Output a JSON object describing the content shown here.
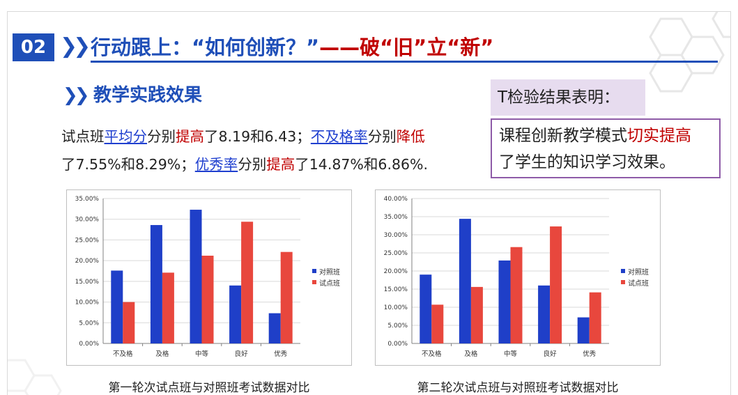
{
  "header": {
    "number": "02",
    "title_prefix": "行动跟上：“如何创新？”",
    "title_dash": "——",
    "title_red": "破“旧”立“新”"
  },
  "section": {
    "title": "教学实践效果"
  },
  "paragraph": {
    "t1": "试点班",
    "link1": "平均分",
    "t2": "分别",
    "hl1": "提高",
    "t3": "了8.19和6.43；",
    "link2": "不及格率",
    "t4": "分别",
    "hl2": "降低",
    "t5": "了7.55%和8.29%；",
    "link3": "优秀率",
    "t6": "分别",
    "hl3": "提高",
    "t7": "了14.87%和6.86%."
  },
  "ttest": {
    "label": "T检验结果表明：",
    "line1_a": "课程创新教学模式",
    "line1_b": "切实提高",
    "line2": "了学生的知识学习效果。"
  },
  "colors": {
    "control": "#1f3fc8",
    "pilot": "#e8473d",
    "brand": "#1f4fb8",
    "red": "#c00000"
  },
  "chart_data": [
    {
      "type": "bar",
      "title": "第一轮次试点班与对照班考试数据对比",
      "categories": [
        "不及格",
        "及格",
        "中等",
        "良好",
        "优秀"
      ],
      "series": [
        {
          "name": "对照班",
          "values": [
            17.6,
            28.6,
            32.3,
            14.0,
            7.3
          ]
        },
        {
          "name": "试点班",
          "values": [
            10.0,
            17.1,
            21.2,
            29.4,
            22.1
          ]
        }
      ],
      "ylim": [
        0,
        35
      ],
      "yticks": [
        "0.00%",
        "5.00%",
        "10.00%",
        "15.00%",
        "20.00%",
        "25.00%",
        "30.00%",
        "35.00%"
      ],
      "ytick_values": [
        0,
        5,
        10,
        15,
        20,
        25,
        30,
        35
      ],
      "grid": true,
      "legend": "right"
    },
    {
      "type": "bar",
      "title": "第二轮次试点班与对照班考试数据对比",
      "categories": [
        "不及格",
        "及格",
        "中等",
        "良好",
        "优秀"
      ],
      "series": [
        {
          "name": "对照班",
          "values": [
            19.0,
            34.4,
            22.9,
            16.0,
            7.2
          ]
        },
        {
          "name": "试点班",
          "values": [
            10.7,
            15.6,
            26.6,
            32.3,
            14.1
          ]
        }
      ],
      "ylim": [
        0,
        40
      ],
      "yticks": [
        "0.00%",
        "5.00%",
        "10.00%",
        "15.00%",
        "20.00%",
        "25.00%",
        "30.00%",
        "35.00%",
        "40.00%"
      ],
      "ytick_values": [
        0,
        5,
        10,
        15,
        20,
        25,
        30,
        35,
        40
      ],
      "grid": true,
      "legend": "right"
    }
  ]
}
